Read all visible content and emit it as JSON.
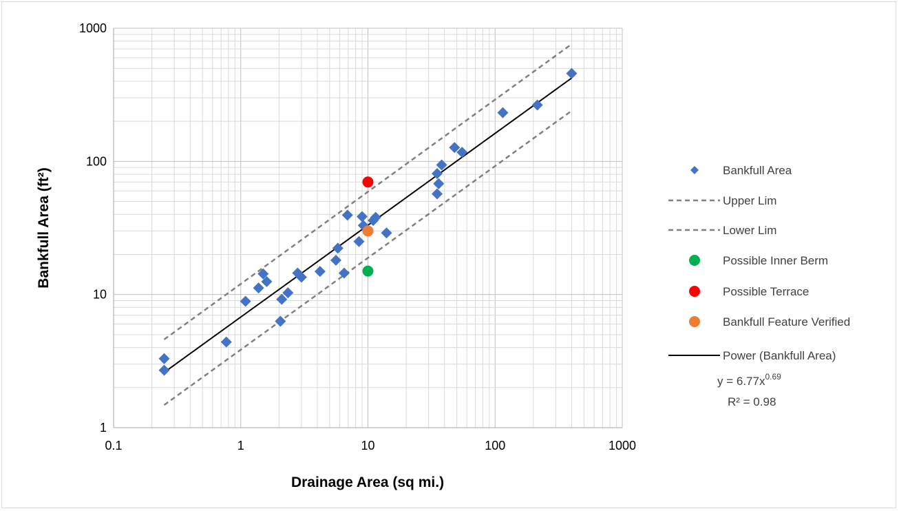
{
  "chart_data": {
    "type": "scatter",
    "title": "",
    "xlabel": "Drainage Area (sq mi.)",
    "ylabel": "Bankfull Area (ft²)",
    "xscale": "log",
    "yscale": "log",
    "xlim": [
      0.1,
      1000
    ],
    "ylim": [
      1,
      1000
    ],
    "x_ticks": [
      "0.1",
      "1",
      "10",
      "100",
      "1000"
    ],
    "y_ticks": [
      "1",
      "10",
      "100",
      "1000"
    ],
    "grid": true,
    "legend_position": "right",
    "colors": {
      "bankfull": "#4472c4",
      "limits": "#808080",
      "inner_berm": "#00b050",
      "terrace": "#ff0000",
      "verified": "#ed7d31",
      "power": "#000000"
    },
    "series": [
      {
        "name": "Bankfull Area",
        "marker": "diamond",
        "points": [
          [
            0.25,
            3.3
          ],
          [
            0.25,
            2.7
          ],
          [
            0.77,
            4.4
          ],
          [
            1.09,
            8.9
          ],
          [
            1.38,
            11.2
          ],
          [
            1.5,
            14.3
          ],
          [
            1.6,
            12.5
          ],
          [
            2.05,
            6.3
          ],
          [
            2.1,
            9.2
          ],
          [
            2.35,
            10.3
          ],
          [
            2.8,
            14.5
          ],
          [
            3.0,
            13.5
          ],
          [
            4.2,
            14.9
          ],
          [
            5.6,
            18.1
          ],
          [
            5.8,
            22.3
          ],
          [
            6.5,
            14.5
          ],
          [
            6.9,
            39.5
          ],
          [
            8.5,
            25.0
          ],
          [
            9.0,
            38.5
          ],
          [
            9.2,
            33.0
          ],
          [
            11.0,
            36.0
          ],
          [
            11.5,
            38.0
          ],
          [
            14.0,
            29.0
          ],
          [
            35.0,
            57.0
          ],
          [
            35.0,
            81.0
          ],
          [
            36.0,
            68.0
          ],
          [
            38.0,
            94.0
          ],
          [
            48.0,
            127.0
          ],
          [
            55.0,
            117.0
          ],
          [
            115.0,
            232.0
          ],
          [
            215.0,
            265.0
          ],
          [
            400.0,
            458.0
          ]
        ]
      },
      {
        "name": "Upper Lim",
        "line": "dashed",
        "points": [
          [
            0.25,
            4.6
          ],
          [
            400.0,
            760.0
          ]
        ]
      },
      {
        "name": "Lower Lim",
        "line": "dashed",
        "points": [
          [
            0.25,
            1.48
          ],
          [
            400.0,
            240.0
          ]
        ]
      },
      {
        "name": "Possible Inner Berm",
        "marker": "circle",
        "points": [
          [
            10.0,
            15.0
          ]
        ]
      },
      {
        "name": "Possible Terrace",
        "marker": "circle",
        "points": [
          [
            10.0,
            70.0
          ]
        ]
      },
      {
        "name": "Bankfull Feature Verified",
        "marker": "circle",
        "points": [
          [
            10.0,
            30.0
          ]
        ]
      },
      {
        "name": "Power (Bankfull Area)",
        "line": "solid",
        "coefficient": 6.77,
        "exponent": 0.69,
        "x_range": [
          0.25,
          400.0
        ]
      }
    ],
    "trendline_equation": {
      "prefix": "y = 6.77x",
      "exponent": "0.69",
      "r_squared": "R² = 0.98"
    }
  }
}
